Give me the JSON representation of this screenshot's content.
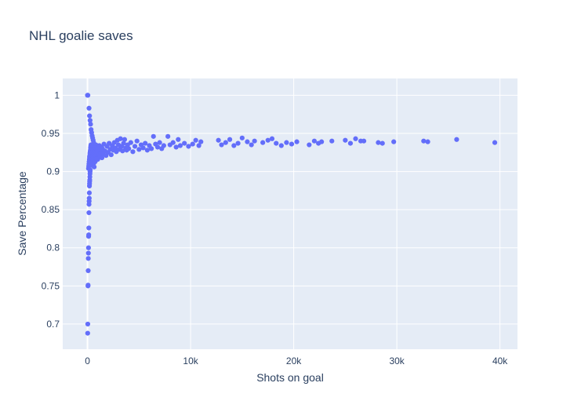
{
  "chart_data": {
    "type": "scatter",
    "title": "NHL goalie saves",
    "xlabel": "Shots on goal",
    "ylabel": "Save Percentage",
    "xlim": [
      -2400,
      41700
    ],
    "ylim": [
      0.667,
      1.022
    ],
    "x_ticks": [
      0,
      10000,
      20000,
      30000,
      40000
    ],
    "x_tick_labels": [
      "0",
      "10k",
      "20k",
      "30k",
      "40k"
    ],
    "y_ticks": [
      0.7,
      0.75,
      0.8,
      0.85,
      0.9,
      0.95,
      1
    ],
    "y_tick_labels": [
      "0.7",
      "0.75",
      "0.8",
      "0.85",
      "0.9",
      "0.95",
      "1"
    ],
    "grid": true,
    "legend": false,
    "colors": {
      "marker": "#636efa",
      "plot_background": "#e5ecf6",
      "text": "#2a3f5f"
    },
    "series": [
      {
        "points": [
          [
            0,
            1.0
          ],
          [
            40,
            1.0
          ],
          [
            20,
            0.688
          ],
          [
            30,
            0.7
          ],
          [
            50,
            0.75
          ],
          [
            60,
            0.751
          ],
          [
            70,
            0.77
          ],
          [
            80,
            0.786
          ],
          [
            90,
            0.793
          ],
          [
            100,
            0.8
          ],
          [
            110,
            0.815
          ],
          [
            120,
            0.817
          ],
          [
            130,
            0.826
          ],
          [
            140,
            0.846
          ],
          [
            150,
            0.857
          ],
          [
            160,
            0.861
          ],
          [
            170,
            0.865
          ],
          [
            180,
            0.872
          ],
          [
            190,
            0.881
          ],
          [
            200,
            0.884
          ],
          [
            210,
            0.887
          ],
          [
            220,
            0.889
          ],
          [
            230,
            0.893
          ],
          [
            240,
            0.897
          ],
          [
            250,
            0.9
          ],
          [
            260,
            0.902
          ],
          [
            150,
            0.983
          ],
          [
            200,
            0.973
          ],
          [
            250,
            0.967
          ],
          [
            300,
            0.962
          ],
          [
            350,
            0.955
          ],
          [
            400,
            0.951
          ],
          [
            450,
            0.947
          ],
          [
            500,
            0.944
          ],
          [
            550,
            0.941
          ],
          [
            600,
            0.938
          ],
          [
            100,
            0.904
          ],
          [
            120,
            0.907
          ],
          [
            140,
            0.91
          ],
          [
            160,
            0.913
          ],
          [
            180,
            0.916
          ],
          [
            200,
            0.919
          ],
          [
            220,
            0.921
          ],
          [
            240,
            0.924
          ],
          [
            260,
            0.926
          ],
          [
            280,
            0.928
          ],
          [
            300,
            0.931
          ],
          [
            320,
            0.933
          ],
          [
            340,
            0.935
          ],
          [
            360,
            0.929
          ],
          [
            380,
            0.922
          ],
          [
            400,
            0.917
          ],
          [
            420,
            0.912
          ],
          [
            440,
            0.908
          ],
          [
            460,
            0.925
          ],
          [
            480,
            0.93
          ],
          [
            500,
            0.92
          ],
          [
            520,
            0.915
          ],
          [
            540,
            0.928
          ],
          [
            560,
            0.934
          ],
          [
            580,
            0.918
          ],
          [
            600,
            0.923
          ],
          [
            620,
            0.911
          ],
          [
            650,
            0.906
          ],
          [
            680,
            0.926
          ],
          [
            700,
            0.932
          ],
          [
            720,
            0.919
          ],
          [
            750,
            0.913
          ],
          [
            780,
            0.927
          ],
          [
            800,
            0.921
          ],
          [
            820,
            0.935
          ],
          [
            850,
            0.917
          ],
          [
            880,
            0.929
          ],
          [
            900,
            0.924
          ],
          [
            950,
            0.931
          ],
          [
            1000,
            0.916
          ],
          [
            1050,
            0.926
          ],
          [
            1100,
            0.922
          ],
          [
            1150,
            0.934
          ],
          [
            1200,
            0.919
          ],
          [
            1250,
            0.928
          ],
          [
            1300,
            0.925
          ],
          [
            1350,
            0.932
          ],
          [
            1400,
            0.918
          ],
          [
            1450,
            0.93
          ],
          [
            1500,
            0.923
          ],
          [
            1600,
            0.936
          ],
          [
            1700,
            0.927
          ],
          [
            1800,
            0.921
          ],
          [
            1900,
            0.933
          ],
          [
            2000,
            0.925
          ],
          [
            2100,
            0.937
          ],
          [
            2200,
            0.929
          ],
          [
            2300,
            0.922
          ],
          [
            2400,
            0.934
          ],
          [
            2500,
            0.928
          ],
          [
            2600,
            0.938
          ],
          [
            2700,
            0.931
          ],
          [
            2800,
            0.926
          ],
          [
            2900,
            0.941
          ],
          [
            3000,
            0.935
          ],
          [
            3100,
            0.929
          ],
          [
            3200,
            0.943
          ],
          [
            3300,
            0.933
          ],
          [
            3400,
            0.927
          ],
          [
            3500,
            0.937
          ],
          [
            3600,
            0.942
          ],
          [
            3700,
            0.931
          ],
          [
            3800,
            0.928
          ],
          [
            3900,
            0.935
          ],
          [
            4000,
            0.93
          ],
          [
            4200,
            0.938
          ],
          [
            4400,
            0.926
          ],
          [
            4600,
            0.933
          ],
          [
            4800,
            0.94
          ],
          [
            5000,
            0.929
          ],
          [
            5200,
            0.935
          ],
          [
            5400,
            0.931
          ],
          [
            5600,
            0.937
          ],
          [
            5800,
            0.928
          ],
          [
            6000,
            0.934
          ],
          [
            6200,
            0.93
          ],
          [
            6400,
            0.946
          ],
          [
            6600,
            0.936
          ],
          [
            6800,
            0.932
          ],
          [
            7000,
            0.938
          ],
          [
            7200,
            0.93
          ],
          [
            7400,
            0.934
          ],
          [
            7800,
            0.946
          ],
          [
            8000,
            0.935
          ],
          [
            8300,
            0.938
          ],
          [
            8600,
            0.932
          ],
          [
            8800,
            0.942
          ],
          [
            9000,
            0.934
          ],
          [
            9400,
            0.937
          ],
          [
            9800,
            0.933
          ],
          [
            10200,
            0.936
          ],
          [
            10500,
            0.941
          ],
          [
            10800,
            0.934
          ],
          [
            11000,
            0.939
          ],
          [
            12700,
            0.941
          ],
          [
            13000,
            0.935
          ],
          [
            13400,
            0.938
          ],
          [
            13800,
            0.942
          ],
          [
            14200,
            0.934
          ],
          [
            14600,
            0.937
          ],
          [
            15000,
            0.944
          ],
          [
            15500,
            0.939
          ],
          [
            15900,
            0.935
          ],
          [
            16200,
            0.94
          ],
          [
            17000,
            0.938
          ],
          [
            17500,
            0.941
          ],
          [
            17900,
            0.943
          ],
          [
            18300,
            0.937
          ],
          [
            18800,
            0.934
          ],
          [
            19300,
            0.938
          ],
          [
            19800,
            0.936
          ],
          [
            20300,
            0.939
          ],
          [
            21500,
            0.935
          ],
          [
            22000,
            0.94
          ],
          [
            22400,
            0.937
          ],
          [
            22700,
            0.939
          ],
          [
            23700,
            0.94
          ],
          [
            25000,
            0.941
          ],
          [
            25500,
            0.937
          ],
          [
            26000,
            0.943
          ],
          [
            26500,
            0.94
          ],
          [
            26800,
            0.94
          ],
          [
            28200,
            0.938
          ],
          [
            28600,
            0.937
          ],
          [
            29700,
            0.939
          ],
          [
            32600,
            0.94
          ],
          [
            33000,
            0.939
          ],
          [
            35800,
            0.942
          ],
          [
            39500,
            0.938
          ]
        ]
      }
    ]
  }
}
